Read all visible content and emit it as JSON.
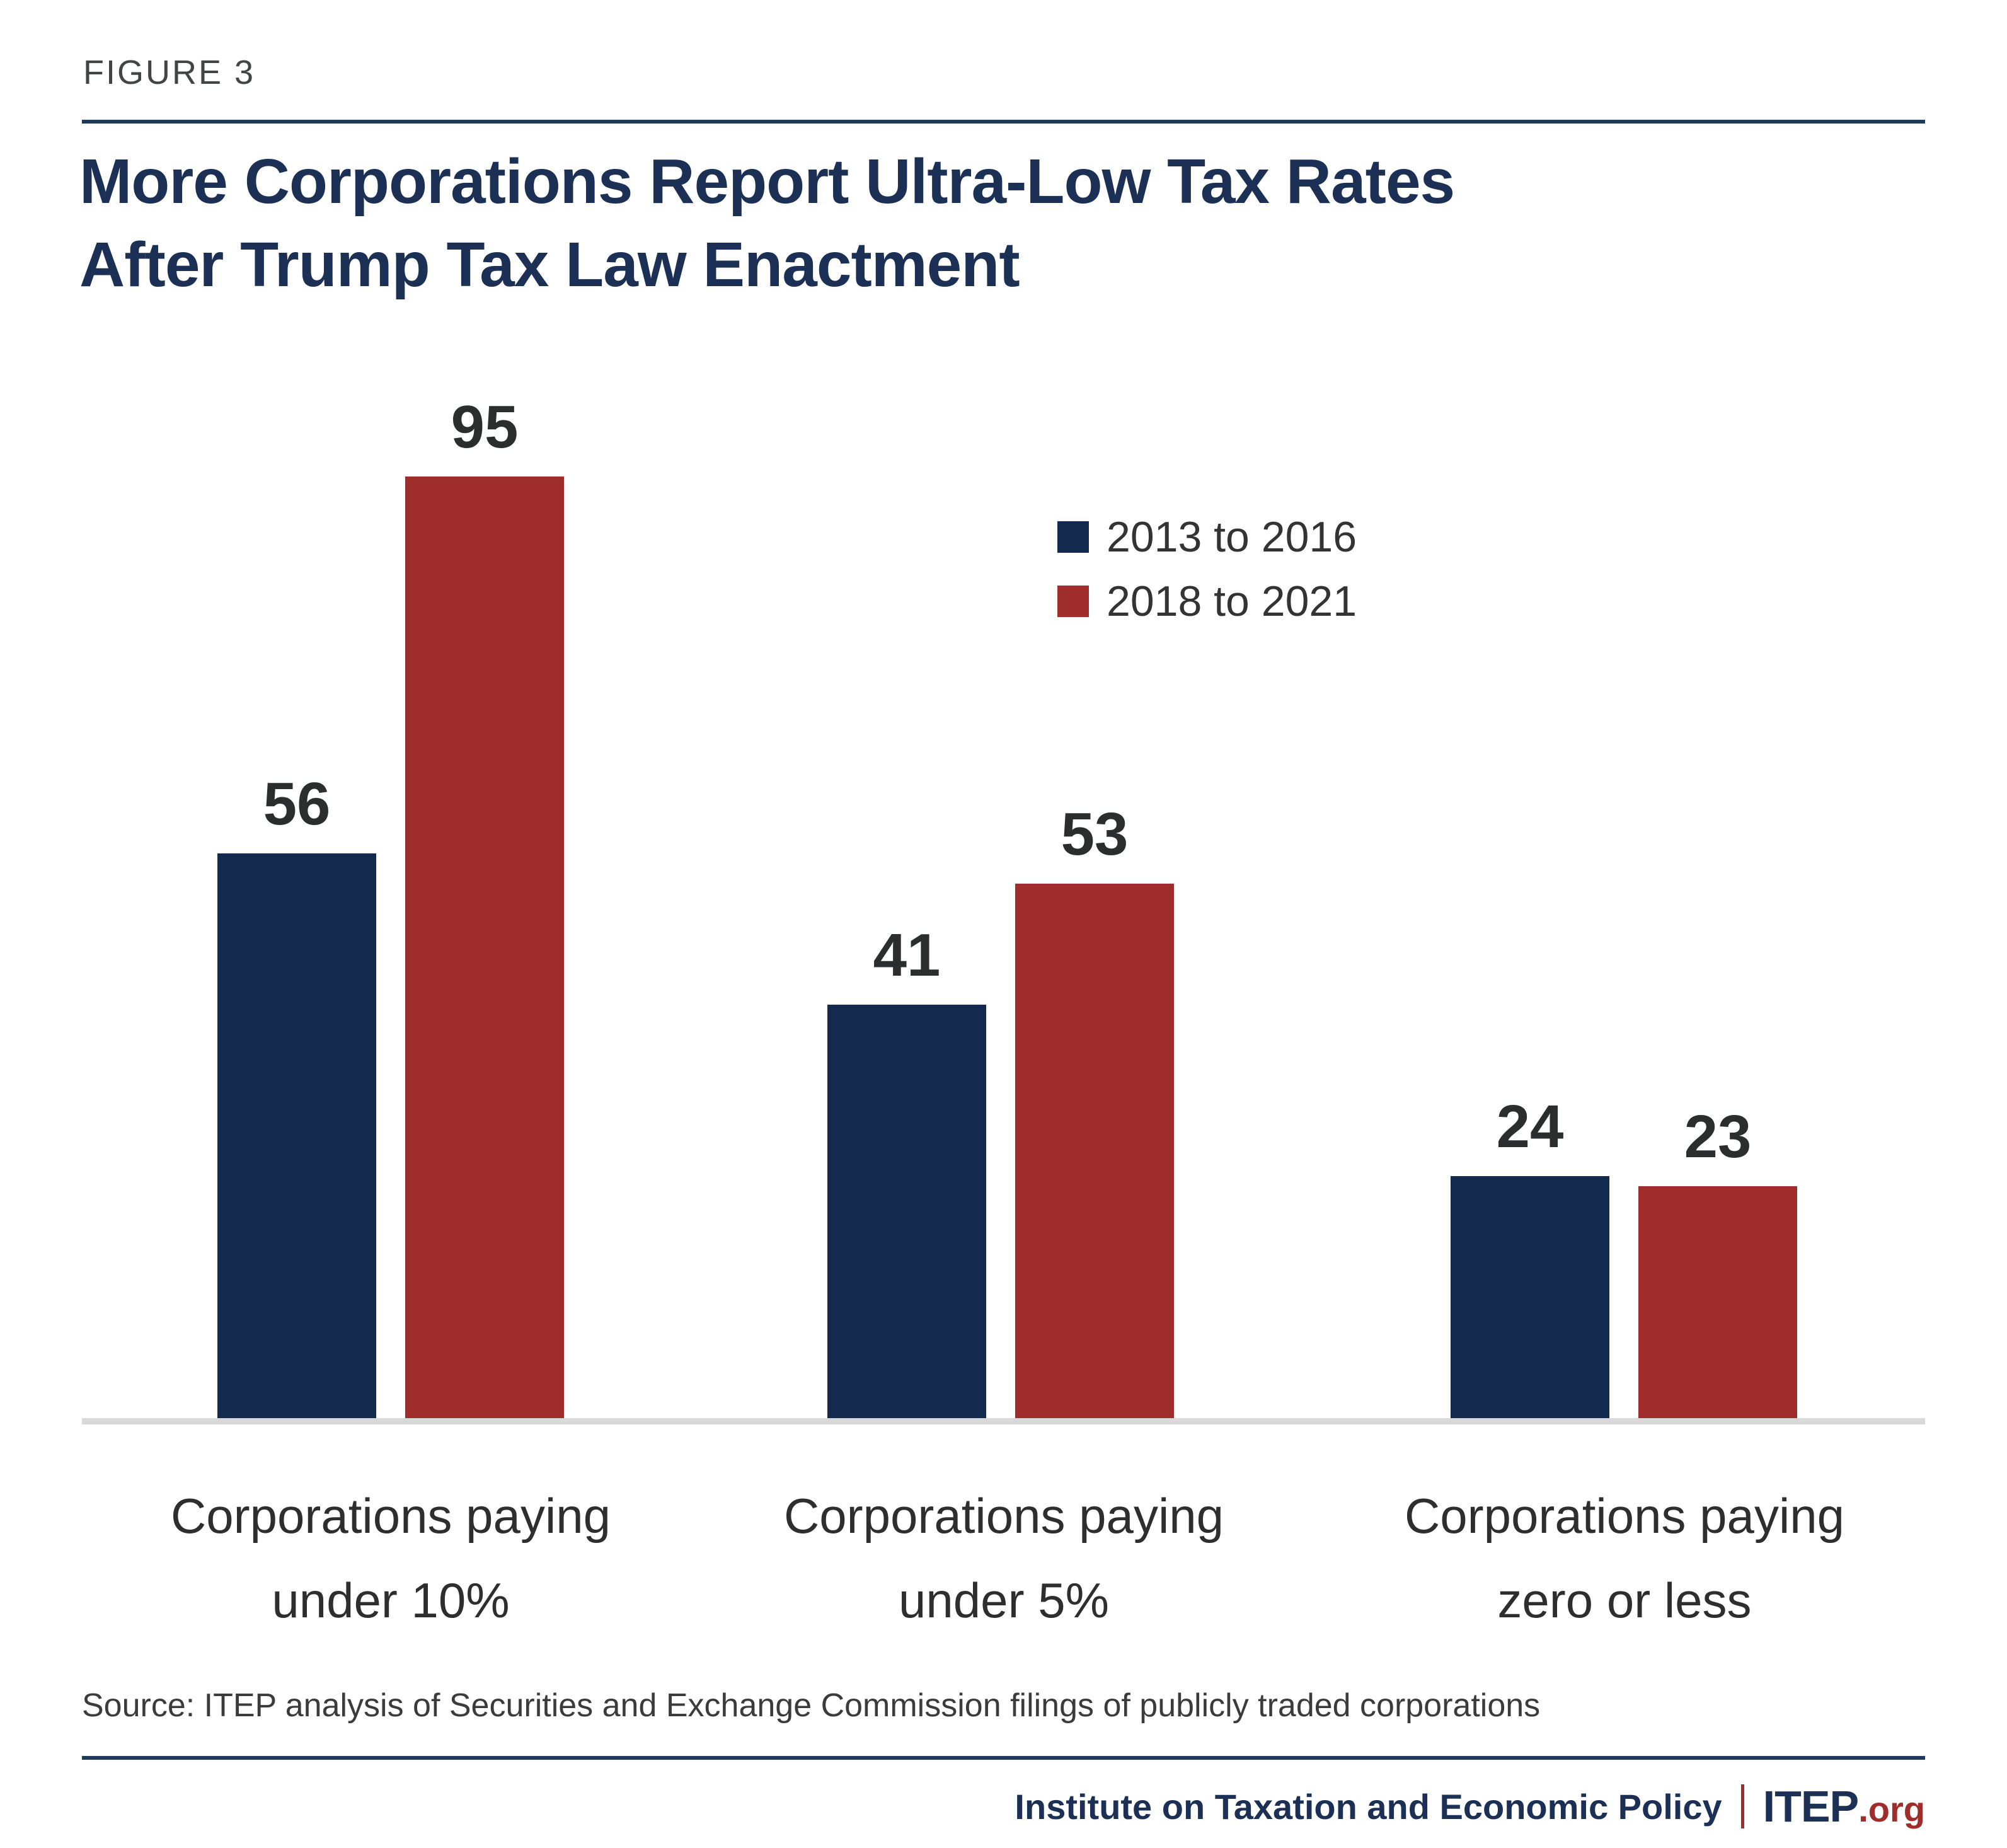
{
  "figure_label": "FIGURE 3",
  "title": {
    "line1": "More Corporations Report Ultra-Low Tax Rates",
    "line2": "After Trump Tax Law Enactment"
  },
  "legend": {
    "items": [
      {
        "label": "2013 to 2016",
        "color": "#14294E"
      },
      {
        "label": "2018 to 2021",
        "color": "#9E2D2B"
      }
    ]
  },
  "chart_data": {
    "type": "bar",
    "categories": [
      "Corporations paying under 10%",
      "Corporations paying under 5%",
      "Corporations paying zero or less"
    ],
    "category_lines": [
      [
        "Corporations paying",
        "under 10%"
      ],
      [
        "Corporations paying",
        "under 5%"
      ],
      [
        "Corporations paying",
        "zero or less"
      ]
    ],
    "series": [
      {
        "name": "2013 to 2016",
        "color": "#14294E",
        "values": [
          56,
          41,
          24
        ]
      },
      {
        "name": "2018 to 2021",
        "color": "#9E2D2B",
        "values": [
          95,
          53,
          23
        ]
      }
    ],
    "ylim": [
      0,
      95
    ],
    "grid": false,
    "axis_labels_shown": false,
    "value_labels": true,
    "legend_position": "inside-upper-right",
    "title": "More Corporations Report Ultra-Low Tax Rates After Trump Tax Law Enactment"
  },
  "source": "Source: ITEP analysis of Securities and Exchange Commission filings of publicly traded corporations",
  "footer": {
    "org_name": "Institute on Taxation and Economic Policy",
    "logo_text": "ITEP",
    "logo_suffix": ".org"
  },
  "colors": {
    "bg": "#FFFFFF",
    "navy_bar": "#14294E",
    "red_bar": "#9E2D2B",
    "title_navy": "#1B3054",
    "rule_navy": "#1D3A5F",
    "figure_label": "#424445",
    "value_label": "#2B2D2E",
    "legend_text": "#333333",
    "category_text": "#2E2E2E",
    "source_text": "#3B3B3B",
    "baseline": "#D9D9D9",
    "brand_red": "#9E2D2B"
  }
}
